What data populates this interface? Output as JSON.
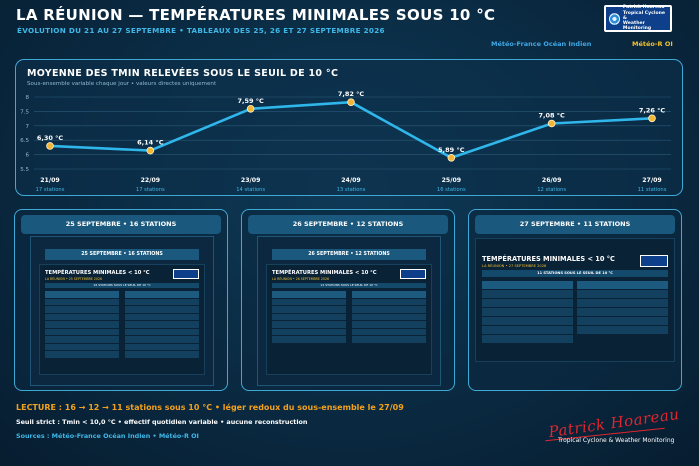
{
  "header": {
    "title": "LA RÉUNION — TEMPÉRATURES MINIMALES SOUS 10 °C",
    "subtitle": "ÉVOLUTION DU 21 AU 27 SEPTEMBRE • TABLEAUX DES 25, 26 ET 27 SEPTEMBRE 2026",
    "logo_text_1": "Patrick Hoareau",
    "logo_text_2": "Tropical Cyclone &",
    "logo_text_3": "Weather Monitoring",
    "source_a": "Météo-France Océan Indien",
    "source_b": "Météo-R OI"
  },
  "chart_data": {
    "type": "line",
    "title": "MOYENNE DES TMIN RELEVÉES SOUS LE SEUIL DE 10 °C",
    "subtitle": "Sous-ensemble variable chaque jour • valeurs directes uniquement",
    "categories": [
      "21/09",
      "22/09",
      "23/09",
      "24/09",
      "25/09",
      "26/09",
      "27/09"
    ],
    "values": [
      6.3,
      6.14,
      7.59,
      7.82,
      5.89,
      7.08,
      7.26
    ],
    "value_labels": [
      "6,30 °C",
      "6,14 °C",
      "7,59 °C",
      "7,82 °C",
      "5,89 °C",
      "7,08 °C",
      "7,26 °C"
    ],
    "station_labels": [
      "17 stations",
      "17 stations",
      "14 stations",
      "13 stations",
      "16 stations",
      "12 stations",
      "11 stations"
    ],
    "y_ticks": [
      "8",
      "7.5",
      "7",
      "6.5",
      "6",
      "5.5"
    ],
    "ylim": [
      5.5,
      8
    ],
    "grid": true,
    "line_color": "#2fb6ea",
    "marker_color": "#f2b534"
  },
  "cards": [
    {
      "title": "25 SEPTEMBRE • 16 STATIONS",
      "inner_bar": "25 SEPTEMBRE • 16 STATIONS",
      "doc_title": "TEMPÉRATURES MINIMALES < 10 °C",
      "doc_sub": "LA RÉUNION • 25 SEPTEMBRE 2026",
      "strip": "16 STATIONS SOUS LE SEUIL DE 10 °C"
    },
    {
      "title": "26 SEPTEMBRE • 12 STATIONS",
      "inner_bar": "26 SEPTEMBRE • 12 STATIONS",
      "doc_title": "TEMPÉRATURES MINIMALES < 10 °C",
      "doc_sub": "LA RÉUNION • 26 SEPTEMBRE 2026",
      "strip": "12 STATIONS SOUS LE SEUIL DE 10 °C"
    },
    {
      "title": "27 SEPTEMBRE • 11 STATIONS",
      "doc_title": "TEMPÉRATURES MINIMALES < 10 °C",
      "doc_sub": "LA RÉUNION • 27 SEPTEMBRE 2026",
      "strip": "11 STATIONS SOUS LE SEUIL DE 10 °C"
    }
  ],
  "footer": {
    "reading": "LECTURE : 16 → 12 → 11 stations sous 10 °C • léger redoux du sous-ensemble le 27/09",
    "note": "Seuil strict : Tmin < 10,0 °C • effectif quotidien variable • aucune reconstruction",
    "sources": "Sources : Météo-France Océan Indien • Météo-R OI",
    "signature": "Patrick Hoareau",
    "tagline": "Tropical Cyclone & Weather Monitoring"
  },
  "colors": {
    "accent": "#3fb8e8",
    "gold": "#f2c12e",
    "orange": "#f2a11e",
    "signature": "#e0262e"
  }
}
